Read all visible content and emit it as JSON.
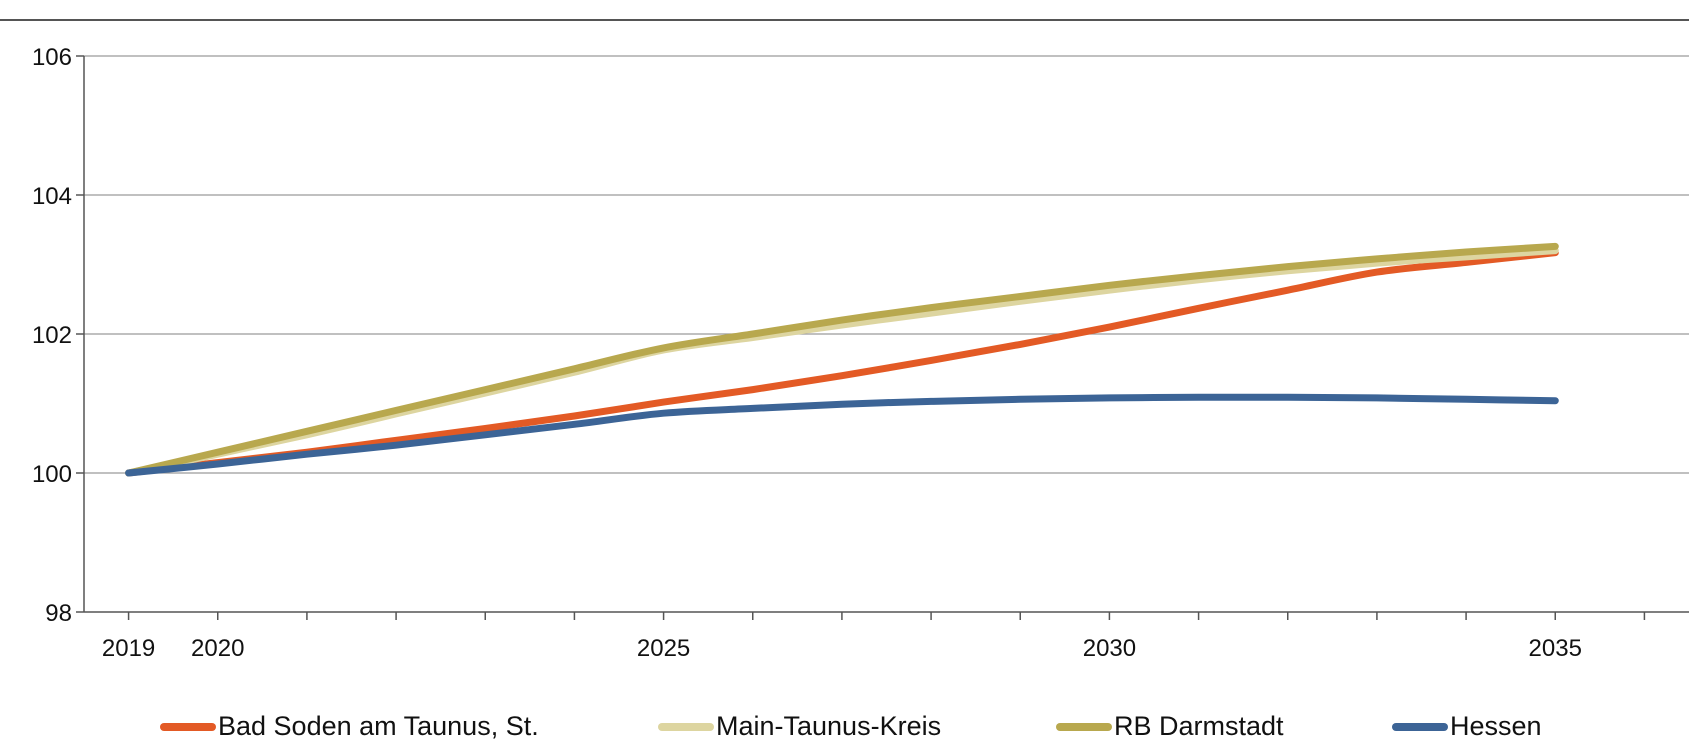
{
  "chart_data": {
    "type": "line",
    "title": "",
    "xlabel": "",
    "ylabel": "",
    "xlim": [
      2018.5,
      2036.5
    ],
    "ylim": [
      98,
      106
    ],
    "y_ticks": [
      98,
      100,
      102,
      104,
      106
    ],
    "x_tick_labels": [
      2019,
      2020,
      2025,
      2030,
      2035
    ],
    "x": [
      2019,
      2020,
      2021,
      2022,
      2023,
      2024,
      2025,
      2026,
      2027,
      2028,
      2029,
      2030,
      2031,
      2032,
      2033,
      2034,
      2035
    ],
    "grid": true,
    "legend_position": "bottom",
    "series": [
      {
        "name": "Bad Soden am Taunus, St.",
        "color": "#E35A25",
        "values": [
          100.0,
          100.15,
          100.3,
          100.47,
          100.64,
          100.82,
          101.02,
          101.2,
          101.4,
          101.62,
          101.85,
          102.1,
          102.37,
          102.63,
          102.89,
          103.03,
          103.17
        ]
      },
      {
        "name": "Main-Taunus-Kreis",
        "color": "#DDD5A0",
        "values": [
          100.0,
          100.27,
          100.55,
          100.85,
          101.15,
          101.45,
          101.77,
          101.95,
          102.13,
          102.3,
          102.47,
          102.63,
          102.78,
          102.91,
          103.02,
          103.11,
          103.2
        ]
      },
      {
        "name": "RB Darmstadt",
        "color": "#B8A84E",
        "values": [
          100.0,
          100.3,
          100.6,
          100.9,
          101.2,
          101.5,
          101.8,
          102.0,
          102.2,
          102.38,
          102.54,
          102.7,
          102.84,
          102.97,
          103.08,
          103.18,
          103.26
        ]
      },
      {
        "name": "Hessen",
        "color": "#3C6496",
        "values": [
          100.0,
          100.13,
          100.27,
          100.4,
          100.55,
          100.7,
          100.86,
          100.93,
          100.99,
          101.03,
          101.06,
          101.08,
          101.09,
          101.09,
          101.08,
          101.06,
          101.04
        ]
      }
    ]
  }
}
